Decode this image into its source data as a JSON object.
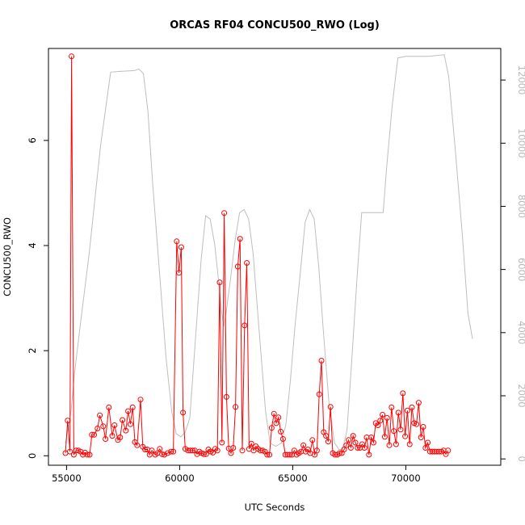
{
  "chart_data": {
    "type": "line",
    "title": "ORCAS RF04 CONCU500_RWO (Log)",
    "xlabel": "UTC Seconds",
    "ylabel": "CONCU500_RWO",
    "y2label": "",
    "xlim": [
      54200,
      74200
    ],
    "ylim": [
      -0.18,
      7.75
    ],
    "y2lim": [
      -200,
      13000
    ],
    "x_ticks": [
      55000,
      60000,
      65000,
      70000
    ],
    "y_ticks": [
      0,
      2,
      4,
      6
    ],
    "y2_ticks": [
      0,
      2000,
      4000,
      6000,
      8000,
      10000,
      12000
    ],
    "grid": false,
    "legend": "none",
    "colors": {
      "concentration": "#ff0000",
      "altitude": "#bebebe",
      "axis": "#000000"
    },
    "series": [
      {
        "axis": "left",
        "marker": "open-circle",
        "points": [
          [
            54950,
            0.05
          ],
          [
            55050,
            0.67
          ],
          [
            55150,
            0.08
          ],
          [
            55220,
            7.6
          ],
          [
            55320,
            0.02
          ],
          [
            55420,
            0.1
          ],
          [
            55520,
            0.1
          ],
          [
            55620,
            0.08
          ],
          [
            55720,
            0.02
          ],
          [
            55820,
            0.06
          ],
          [
            55920,
            0.02
          ],
          [
            56020,
            0.02
          ],
          [
            56120,
            0.4
          ],
          [
            56220,
            0.4
          ],
          [
            56370,
            0.52
          ],
          [
            56470,
            0.77
          ],
          [
            56620,
            0.56
          ],
          [
            56720,
            0.32
          ],
          [
            56870,
            0.92
          ],
          [
            57020,
            0.38
          ],
          [
            57120,
            0.58
          ],
          [
            57270,
            0.3
          ],
          [
            57370,
            0.35
          ],
          [
            57470,
            0.68
          ],
          [
            57620,
            0.48
          ],
          [
            57720,
            0.85
          ],
          [
            57820,
            0.6
          ],
          [
            57920,
            0.92
          ],
          [
            58020,
            0.26
          ],
          [
            58120,
            0.2
          ],
          [
            58270,
            1.07
          ],
          [
            58370,
            0.17
          ],
          [
            58470,
            0.12
          ],
          [
            58570,
            0.12
          ],
          [
            58670,
            0.02
          ],
          [
            58770,
            0.1
          ],
          [
            58920,
            0.02
          ],
          [
            59020,
            0.05
          ],
          [
            59120,
            0.13
          ],
          [
            59220,
            0.03
          ],
          [
            59320,
            0.02
          ],
          [
            59470,
            0.05
          ],
          [
            59620,
            0.08
          ],
          [
            59720,
            0.08
          ],
          [
            59870,
            4.08
          ],
          [
            59970,
            3.48
          ],
          [
            60070,
            3.97
          ],
          [
            60150,
            0.82
          ],
          [
            60250,
            0.13
          ],
          [
            60370,
            0.1
          ],
          [
            60470,
            0.1
          ],
          [
            60570,
            0.1
          ],
          [
            60670,
            0.1
          ],
          [
            60770,
            0.03
          ],
          [
            60870,
            0.08
          ],
          [
            60970,
            0.05
          ],
          [
            61070,
            0.03
          ],
          [
            61170,
            0.03
          ],
          [
            61270,
            0.12
          ],
          [
            61370,
            0.08
          ],
          [
            61470,
            0.06
          ],
          [
            61570,
            0.13
          ],
          [
            61670,
            0.1
          ],
          [
            61770,
            3.3
          ],
          [
            61870,
            0.25
          ],
          [
            61970,
            4.62
          ],
          [
            62070,
            1.12
          ],
          [
            62170,
            0.14
          ],
          [
            62270,
            0.05
          ],
          [
            62370,
            0.15
          ],
          [
            62470,
            0.93
          ],
          [
            62570,
            3.6
          ],
          [
            62670,
            4.13
          ],
          [
            62770,
            0.1
          ],
          [
            62870,
            2.48
          ],
          [
            62970,
            3.67
          ],
          [
            63070,
            0.13
          ],
          [
            63170,
            0.23
          ],
          [
            63270,
            0.1
          ],
          [
            63370,
            0.18
          ],
          [
            63470,
            0.13
          ],
          [
            63570,
            0.1
          ],
          [
            63670,
            0.1
          ],
          [
            63770,
            0.08
          ],
          [
            63870,
            0.02
          ],
          [
            63970,
            0.02
          ],
          [
            64070,
            0.53
          ],
          [
            64170,
            0.8
          ],
          [
            64270,
            0.62
          ],
          [
            64370,
            0.73
          ],
          [
            64470,
            0.46
          ],
          [
            64570,
            0.32
          ],
          [
            64670,
            0.02
          ],
          [
            64770,
            0.02
          ],
          [
            64870,
            0.02
          ],
          [
            64970,
            0.02
          ],
          [
            65070,
            0.1
          ],
          [
            65170,
            0.02
          ],
          [
            65270,
            0.05
          ],
          [
            65370,
            0.08
          ],
          [
            65470,
            0.2
          ],
          [
            65570,
            0.08
          ],
          [
            65670,
            0.12
          ],
          [
            65770,
            0.05
          ],
          [
            65870,
            0.3
          ],
          [
            65970,
            0.02
          ],
          [
            66070,
            0.1
          ],
          [
            66170,
            1.17
          ],
          [
            66270,
            1.81
          ],
          [
            66370,
            0.45
          ],
          [
            66470,
            0.38
          ],
          [
            66570,
            0.27
          ],
          [
            66670,
            0.93
          ],
          [
            66770,
            0.05
          ],
          [
            66870,
            0.02
          ],
          [
            66970,
            0.02
          ],
          [
            67070,
            0.05
          ],
          [
            67170,
            0.05
          ],
          [
            67270,
            0.12
          ],
          [
            67370,
            0.2
          ],
          [
            67470,
            0.3
          ],
          [
            67570,
            0.15
          ],
          [
            67670,
            0.38
          ],
          [
            67770,
            0.25
          ],
          [
            67870,
            0.15
          ],
          [
            67970,
            0.15
          ],
          [
            68070,
            0.22
          ],
          [
            68170,
            0.15
          ],
          [
            68270,
            0.35
          ],
          [
            68370,
            0.02
          ],
          [
            68470,
            0.35
          ],
          [
            68570,
            0.25
          ],
          [
            68670,
            0.62
          ],
          [
            68770,
            0.58
          ],
          [
            68870,
            0.67
          ],
          [
            68970,
            0.78
          ],
          [
            69070,
            0.36
          ],
          [
            69170,
            0.72
          ],
          [
            69270,
            0.2
          ],
          [
            69370,
            0.92
          ],
          [
            69470,
            0.47
          ],
          [
            69570,
            0.22
          ],
          [
            69670,
            0.82
          ],
          [
            69770,
            0.5
          ],
          [
            69870,
            1.19
          ],
          [
            69970,
            0.37
          ],
          [
            70070,
            0.86
          ],
          [
            70170,
            0.22
          ],
          [
            70270,
            0.92
          ],
          [
            70370,
            0.62
          ],
          [
            70470,
            0.6
          ],
          [
            70570,
            1.01
          ],
          [
            70670,
            0.35
          ],
          [
            70770,
            0.55
          ],
          [
            70870,
            0.15
          ],
          [
            70970,
            0.25
          ],
          [
            71070,
            0.08
          ],
          [
            71170,
            0.08
          ],
          [
            71270,
            0.08
          ],
          [
            71370,
            0.08
          ],
          [
            71470,
            0.08
          ],
          [
            71570,
            0.08
          ],
          [
            71670,
            0.1
          ],
          [
            71770,
            0.03
          ],
          [
            71870,
            0.1
          ]
        ]
      },
      {
        "axis": "right",
        "marker": "none",
        "points": [
          [
            54950,
            500
          ],
          [
            55050,
            900
          ],
          [
            55200,
            1500
          ],
          [
            55350,
            2700
          ],
          [
            55600,
            4200
          ],
          [
            56000,
            6500
          ],
          [
            56500,
            9900
          ],
          [
            56950,
            12250
          ],
          [
            57300,
            12270
          ],
          [
            58000,
            12300
          ],
          [
            58200,
            12350
          ],
          [
            58400,
            12200
          ],
          [
            58600,
            11000
          ],
          [
            58800,
            8800
          ],
          [
            59100,
            6000
          ],
          [
            59400,
            3200
          ],
          [
            59650,
            1500
          ],
          [
            59850,
            800
          ],
          [
            60050,
            700
          ],
          [
            60250,
            850
          ],
          [
            60450,
            1300
          ],
          [
            60700,
            3800
          ],
          [
            60950,
            6300
          ],
          [
            61150,
            7700
          ],
          [
            61350,
            7600
          ],
          [
            61550,
            6800
          ],
          [
            61700,
            5800
          ],
          [
            61850,
            4700
          ],
          [
            61950,
            4200
          ],
          [
            62050,
            4600
          ],
          [
            62250,
            5700
          ],
          [
            62450,
            6900
          ],
          [
            62650,
            7800
          ],
          [
            62850,
            7900
          ],
          [
            63050,
            7600
          ],
          [
            63250,
            6500
          ],
          [
            63500,
            4200
          ],
          [
            63800,
            1500
          ],
          [
            64000,
            500
          ],
          [
            64250,
            400
          ],
          [
            64500,
            500
          ],
          [
            64700,
            1100
          ],
          [
            64900,
            2500
          ],
          [
            65100,
            4200
          ],
          [
            65350,
            6000
          ],
          [
            65550,
            7500
          ],
          [
            65750,
            7900
          ],
          [
            65950,
            7600
          ],
          [
            66150,
            6100
          ],
          [
            66350,
            4100
          ],
          [
            66600,
            1800
          ],
          [
            66850,
            500
          ],
          [
            67050,
            300
          ],
          [
            67200,
            300
          ],
          [
            67400,
            900
          ],
          [
            67600,
            3000
          ],
          [
            67850,
            5800
          ],
          [
            68050,
            7800
          ],
          [
            68700,
            7800
          ],
          [
            69000,
            7800
          ],
          [
            69150,
            9200
          ],
          [
            69400,
            11200
          ],
          [
            69650,
            12700
          ],
          [
            70000,
            12750
          ],
          [
            71000,
            12750
          ],
          [
            71700,
            12800
          ],
          [
            71900,
            12100
          ],
          [
            72200,
            9700
          ],
          [
            72500,
            7100
          ],
          [
            72750,
            4600
          ],
          [
            72950,
            3800
          ]
        ]
      }
    ]
  }
}
